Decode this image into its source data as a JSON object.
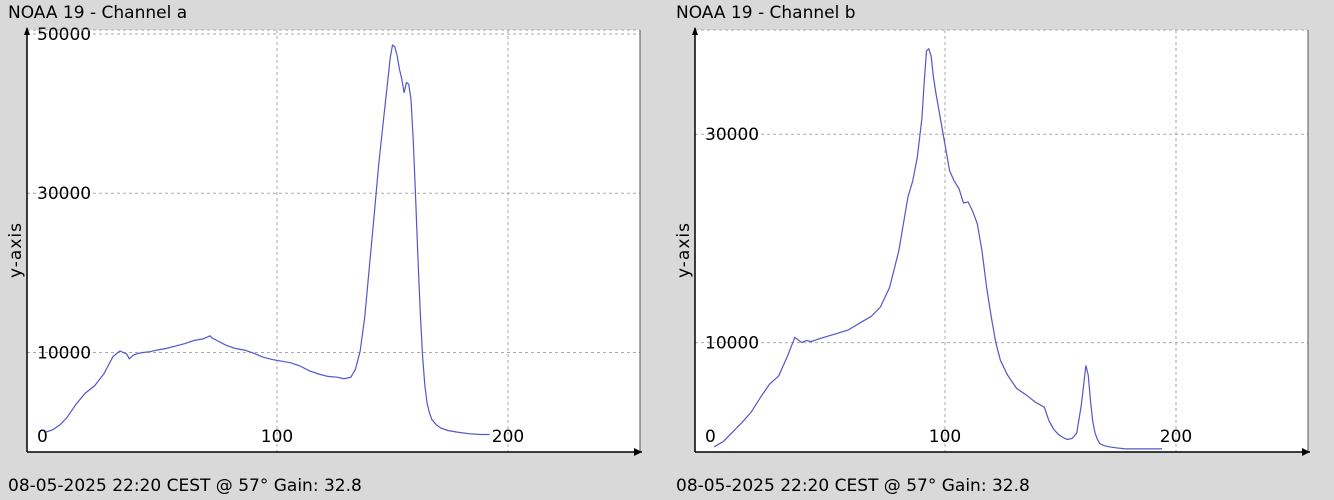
{
  "chart_data": [
    {
      "type": "line",
      "title": "NOAA 19 - Channel a",
      "footer": "08-05-2025 22:20 CEST @ 57° Gain: 32.8",
      "xlabel": "",
      "ylabel": "y-axis",
      "xlim": [
        0,
        250
      ],
      "ylim": [
        -2500,
        50500
      ],
      "x_ticks": [
        0,
        100,
        200
      ],
      "y_ticks": [
        10000,
        30000,
        50000
      ],
      "grid": true,
      "colors": {
        "line": "#5555cc",
        "grid": "#aaaaaa",
        "plot_bg": "#ffffff",
        "page_bg": "#d9d9d9"
      },
      "series": [
        {
          "x": [
            0,
            3,
            6,
            9,
            13,
            17,
            21,
            25,
            29,
            32,
            35,
            36,
            38,
            40,
            42,
            45,
            48,
            52,
            56,
            60,
            64,
            68,
            71,
            72,
            74,
            78,
            82,
            86,
            90,
            94,
            98,
            102,
            106,
            110,
            114,
            118,
            122,
            126,
            129,
            132,
            134,
            136,
            138,
            140,
            142,
            144,
            146,
            148,
            149,
            150,
            151,
            152,
            153,
            154,
            155,
            156,
            157,
            158,
            159,
            160,
            161,
            162,
            163,
            164,
            165,
            166,
            167,
            169,
            171,
            174,
            178,
            183,
            188,
            192
          ],
          "y": [
            0,
            300,
            900,
            1800,
            3500,
            4900,
            5800,
            7300,
            9500,
            10200,
            9800,
            9200,
            9700,
            9900,
            10000,
            10100,
            10300,
            10500,
            10800,
            11100,
            11500,
            11700,
            12100,
            11800,
            11500,
            10900,
            10500,
            10300,
            9900,
            9400,
            9100,
            8900,
            8700,
            8300,
            7700,
            7300,
            7000,
            6900,
            6700,
            6900,
            7900,
            10200,
            14500,
            20800,
            27000,
            33500,
            39000,
            44300,
            47000,
            48600,
            48400,
            47300,
            45600,
            44400,
            42600,
            43900,
            43700,
            41800,
            36500,
            29500,
            22000,
            15200,
            9700,
            5900,
            3600,
            2400,
            1600,
            900,
            500,
            200,
            0,
            -200,
            -300,
            -300
          ]
        }
      ]
    },
    {
      "type": "line",
      "title": "NOAA 19 - Channel b",
      "footer": "08-05-2025 22:20 CEST @ 57° Gain: 32.8",
      "xlabel": "",
      "ylabel": "y-axis",
      "xlim": [
        0,
        250
      ],
      "ylim": [
        -500,
        40000
      ],
      "x_ticks": [
        0,
        100,
        200
      ],
      "y_ticks": [
        10000,
        30000
      ],
      "grid": true,
      "colors": {
        "line": "#5555cc",
        "grid": "#aaaaaa",
        "plot_bg": "#ffffff",
        "page_bg": "#d9d9d9"
      },
      "series": [
        {
          "x": [
            0,
            4,
            8,
            12,
            16,
            20,
            24,
            28,
            32,
            35,
            38,
            40,
            42,
            46,
            52,
            58,
            64,
            68,
            72,
            76,
            80,
            84,
            86,
            88,
            90,
            91,
            92,
            93,
            94,
            95,
            96,
            98,
            100,
            102,
            104,
            106,
            108,
            110,
            112,
            114,
            116,
            118,
            120,
            122,
            124,
            127,
            131,
            135,
            139,
            143,
            145,
            147,
            149,
            151,
            153,
            155,
            157,
            159,
            161,
            162,
            163,
            164,
            165,
            166,
            167,
            169,
            171,
            174,
            178,
            183,
            188,
            194
          ],
          "y": [
            0,
            500,
            1400,
            2300,
            3300,
            4700,
            6000,
            6800,
            8800,
            10500,
            10000,
            10200,
            10100,
            10400,
            10800,
            11200,
            12000,
            12500,
            13400,
            15300,
            18800,
            24000,
            25500,
            27800,
            31500,
            35000,
            38000,
            38200,
            37500,
            35500,
            34000,
            31500,
            29000,
            26500,
            25500,
            24800,
            23400,
            23500,
            22600,
            21400,
            18800,
            15300,
            12500,
            10000,
            8300,
            6900,
            5600,
            5000,
            4300,
            3800,
            2500,
            1700,
            1200,
            900,
            700,
            800,
            1300,
            4000,
            7800,
            6900,
            4400,
            2400,
            1300,
            700,
            300,
            100,
            0,
            -100,
            -200,
            -200,
            -200,
            -200
          ]
        }
      ]
    }
  ]
}
